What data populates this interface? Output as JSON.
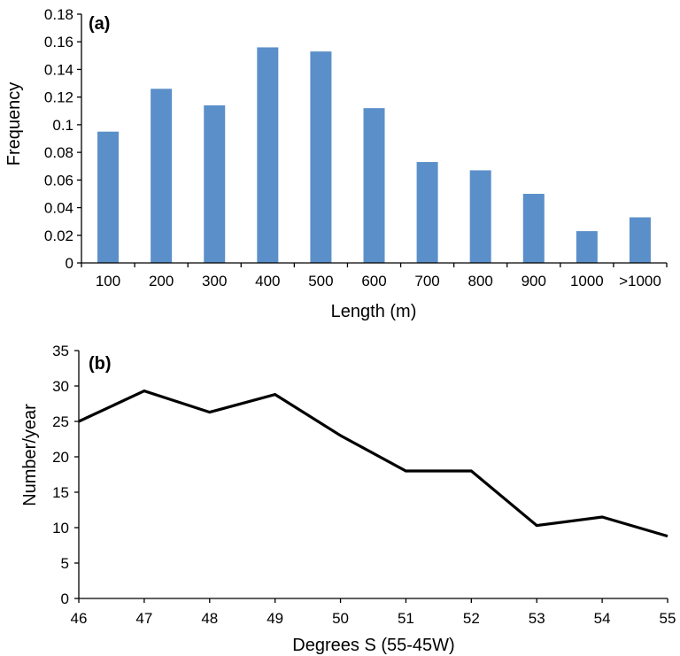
{
  "chart_data": [
    {
      "panel": "(a)",
      "type": "bar",
      "categories": [
        "100",
        "200",
        "300",
        "400",
        "500",
        "600",
        "700",
        "800",
        "900",
        "1000",
        ">1000"
      ],
      "values": [
        0.095,
        0.126,
        0.114,
        0.156,
        0.153,
        0.112,
        0.073,
        0.067,
        0.05,
        0.023,
        0.033
      ],
      "xlabel": "Length (m)",
      "ylabel": "Frequency",
      "ylim": [
        0,
        0.18
      ],
      "yticks": [
        0,
        0.02,
        0.04,
        0.06,
        0.08,
        0.1,
        0.12,
        0.14,
        0.16,
        0.18
      ],
      "ytick_labels": [
        "0",
        "0.02",
        "0.04",
        "0.06",
        "0.08",
        "0.1",
        "0.12",
        "0.14",
        "0.16",
        "0.18"
      ],
      "bar_color": "#5b8fc9",
      "grid": false
    },
    {
      "panel": "(b)",
      "type": "line",
      "x": [
        46,
        47,
        48,
        49,
        50,
        51,
        52,
        53,
        54,
        55
      ],
      "y": [
        25.0,
        29.3,
        26.3,
        28.8,
        23.0,
        18.0,
        18.0,
        10.3,
        11.5,
        8.8
      ],
      "xlabel": "Degrees S (55-45W)",
      "ylabel": "Number/year",
      "xlim": [
        46,
        55
      ],
      "ylim": [
        0,
        35
      ],
      "xticks": [
        46,
        47,
        48,
        49,
        50,
        51,
        52,
        53,
        54,
        55
      ],
      "yticks": [
        0,
        5,
        10,
        15,
        20,
        25,
        30,
        35
      ],
      "line_color": "#000000",
      "grid": false
    }
  ]
}
